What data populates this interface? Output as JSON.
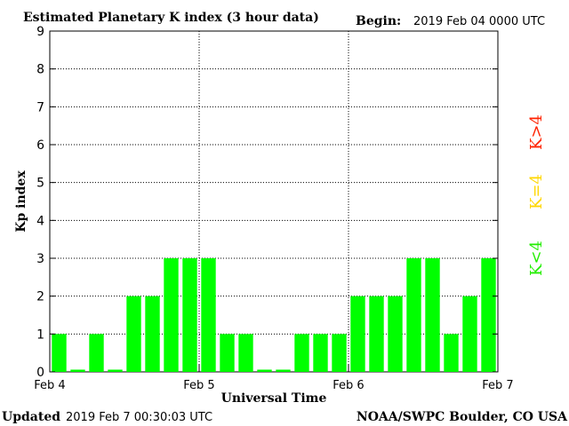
{
  "header": {
    "title": "Estimated Planetary K index (3 hour data)",
    "begin_label": "Begin:",
    "begin_value": "2019 Feb 04 0000 UTC"
  },
  "footer": {
    "updated_label": "Updated",
    "updated_value": "2019 Feb  7 00:30:03 UTC",
    "source": "NOAA/SWPC Boulder, CO USA"
  },
  "legend": {
    "high": {
      "label": "K>4",
      "color": "#ff2200"
    },
    "equal": {
      "label": "K=4",
      "color": "#ffd700"
    },
    "low": {
      "label": "K<4",
      "color": "#22ee00"
    }
  },
  "colors": {
    "bar": "#00ff00",
    "grid": "#000000"
  },
  "chart_data": {
    "type": "bar",
    "title": "Estimated Planetary K index (3 hour data)",
    "xlabel": "Universal Time",
    "ylabel": "Kp index",
    "ylim": [
      0,
      9
    ],
    "yticks": [
      "0",
      "1",
      "2",
      "3",
      "4",
      "5",
      "6",
      "7",
      "8",
      "9"
    ],
    "xticks": [
      "Feb 4",
      "Feb 5",
      "Feb 6",
      "Feb 7"
    ],
    "grid": true,
    "values": [
      1,
      0,
      1,
      0,
      2,
      2,
      3,
      3,
      3,
      1,
      1,
      0,
      0,
      1,
      1,
      1,
      2,
      2,
      2,
      3,
      3,
      1,
      2,
      3
    ]
  }
}
